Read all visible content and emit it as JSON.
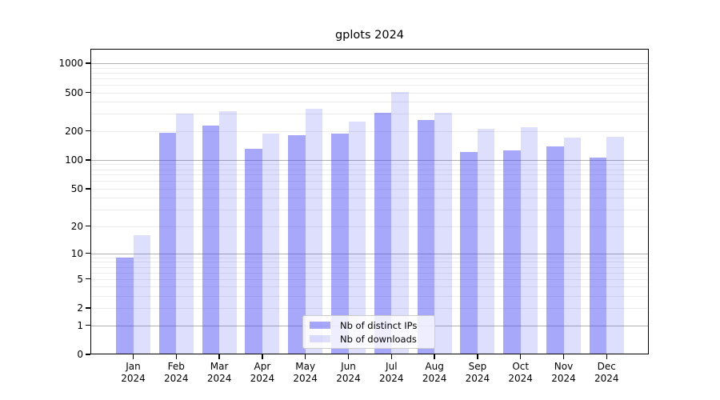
{
  "chart_data": {
    "type": "bar",
    "title": "gplots 2024",
    "year_label": "2024",
    "categories": [
      "Jan",
      "Feb",
      "Mar",
      "Apr",
      "May",
      "Jun",
      "Jul",
      "Aug",
      "Sep",
      "Oct",
      "Nov",
      "Dec"
    ],
    "series": [
      {
        "name": "Nb of distinct IPs",
        "color": "#a7a7f7",
        "fill": "rgba(70,70,246,0.47)",
        "values": [
          9,
          190,
          225,
          130,
          181,
          186,
          306,
          262,
          122,
          126,
          139,
          106
        ]
      },
      {
        "name": "Nb of downloads",
        "color": "#dcdcfa",
        "fill": "rgba(70,70,246,0.18)",
        "values": [
          16,
          304,
          320,
          188,
          342,
          248,
          505,
          310,
          212,
          217,
          169,
          175
        ]
      }
    ],
    "yticks": [
      0,
      1,
      2,
      5,
      10,
      20,
      50,
      100,
      200,
      500,
      1000
    ],
    "scale": "log10(value+1)",
    "ylim": [
      0,
      1400
    ],
    "grid": {
      "minor_color": "#ebebeb",
      "major_color": "#b0b0b0",
      "major_at": [
        1,
        10,
        100,
        1000
      ]
    },
    "legend": {
      "position": "inside-lower-center",
      "frame_color": "#cccccc",
      "background": "rgba(255,255,255,0.8)"
    }
  }
}
